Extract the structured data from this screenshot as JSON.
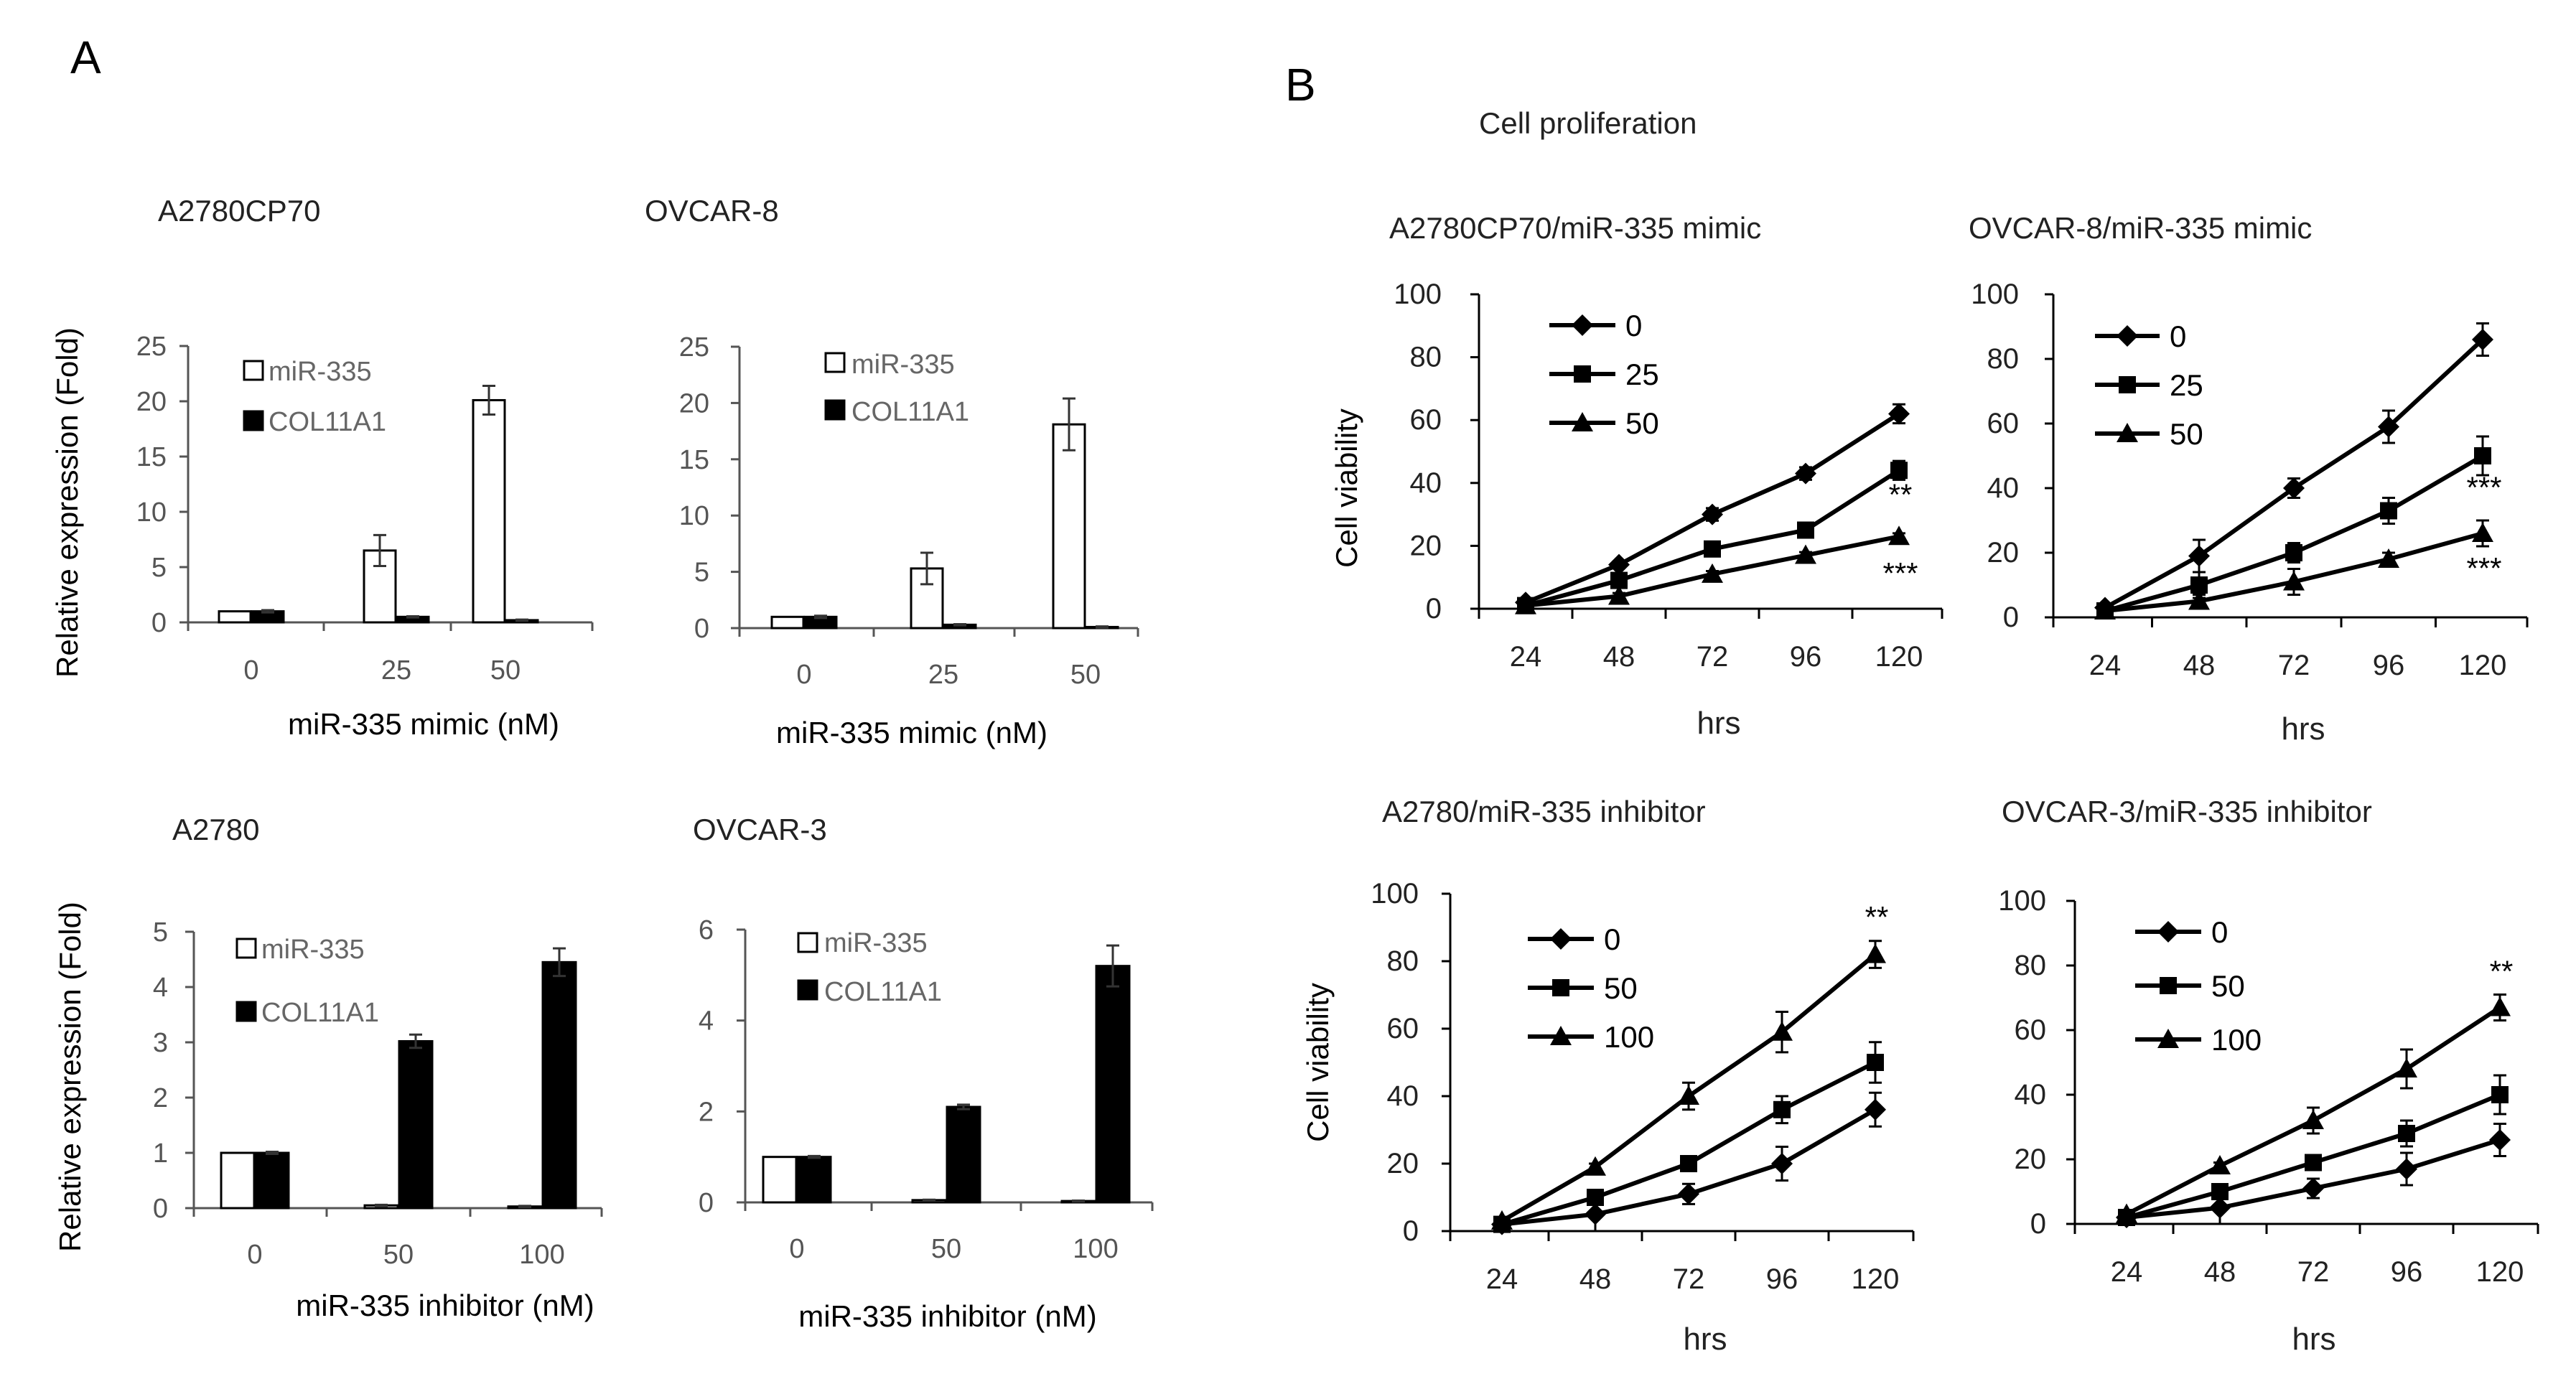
{
  "figure": {
    "panel_a_label": "A",
    "panel_b_label": "B",
    "panel_b_title": "Cell proliferation",
    "bar_ylabel": "Relative expression (Fold)",
    "line_ylabel": "Cell viability",
    "line_xlabel": "hrs"
  },
  "colors": {
    "ink": "#000000",
    "axis": "#555555",
    "text": "#222222",
    "legend_text": "#666666",
    "open_fill": "#ffffff",
    "solid_fill": "#000000"
  },
  "chart_data": [
    {
      "type": "bar",
      "title": "A2780CP70",
      "xlabel": "miR-335 mimic (nM)",
      "categories": [
        "0",
        "25",
        "50"
      ],
      "ylim": [
        0,
        25
      ],
      "yticks": [
        "0",
        "5",
        "10",
        "15",
        "20",
        "25"
      ],
      "series": [
        {
          "name": "miR-335",
          "values": [
            1,
            6.5,
            20.1
          ],
          "errors": [
            0,
            1.4,
            1.3
          ]
        },
        {
          "name": "COL11A1",
          "values": [
            1,
            0.5,
            0.2
          ],
          "errors": [
            0.1,
            0.05,
            0.05
          ]
        }
      ]
    },
    {
      "type": "bar",
      "title": "OVCAR-8",
      "xlabel": "miR-335 mimic (nM)",
      "categories": [
        "0",
        "25",
        "50"
      ],
      "ylim": [
        0,
        25
      ],
      "yticks": [
        "0",
        "5",
        "10",
        "15",
        "20",
        "25"
      ],
      "series": [
        {
          "name": "miR-335",
          "values": [
            1,
            5.3,
            18.1
          ],
          "errors": [
            0,
            1.4,
            2.3
          ]
        },
        {
          "name": "COL11A1",
          "values": [
            1,
            0.3,
            0.1
          ],
          "errors": [
            0.1,
            0.05,
            0.05
          ]
        }
      ]
    },
    {
      "type": "bar",
      "title": "A2780",
      "xlabel": "miR-335 inhibitor (nM)",
      "categories": [
        "0",
        "50",
        "100"
      ],
      "ylim": [
        0,
        5
      ],
      "yticks": [
        "0",
        "1",
        "2",
        "3",
        "4",
        "5"
      ],
      "series": [
        {
          "name": "miR-335",
          "values": [
            1,
            0.05,
            0.03
          ],
          "errors": [
            0,
            0.01,
            0.01
          ]
        },
        {
          "name": "COL11A1",
          "values": [
            1,
            3.02,
            4.45
          ],
          "errors": [
            0.02,
            0.12,
            0.25
          ]
        }
      ]
    },
    {
      "type": "bar",
      "title": "OVCAR-3",
      "xlabel": "miR-335 inhibitor (nM)",
      "categories": [
        "0",
        "50",
        "100"
      ],
      "ylim": [
        0,
        6
      ],
      "yticks": [
        "0",
        "2",
        "4",
        "6"
      ],
      "series": [
        {
          "name": "miR-335",
          "values": [
            1,
            0.05,
            0.03
          ],
          "errors": [
            0,
            0.01,
            0.01
          ]
        },
        {
          "name": "COL11A1",
          "values": [
            1,
            2.1,
            5.2
          ],
          "errors": [
            0.02,
            0.05,
            0.45
          ]
        }
      ]
    },
    {
      "type": "line",
      "title": "A2780CP70/miR-335 mimic",
      "xlabel": "hrs",
      "ylabel": "Cell viability",
      "x": [
        "24",
        "48",
        "72",
        "96",
        "120"
      ],
      "ylim": [
        0,
        100
      ],
      "yticks": [
        "0",
        "20",
        "40",
        "60",
        "80",
        "100"
      ],
      "series": [
        {
          "name": "0",
          "marker": "diamond",
          "values": [
            2,
            14,
            30,
            43,
            62
          ],
          "errors": [
            1,
            1,
            2,
            2,
            3
          ]
        },
        {
          "name": "25",
          "marker": "square",
          "values": [
            1,
            9,
            19,
            25,
            44
          ],
          "errors": [
            1,
            1,
            1,
            1,
            3
          ]
        },
        {
          "name": "50",
          "marker": "triangle",
          "values": [
            1,
            4,
            11,
            17,
            23
          ],
          "errors": [
            1,
            1,
            1,
            1,
            1
          ]
        }
      ],
      "annotations": [
        {
          "text": "**",
          "x": "120",
          "y": 33
        },
        {
          "text": "***",
          "x": "120",
          "y": 8
        }
      ]
    },
    {
      "type": "line",
      "title": "OVCAR-8/miR-335 mimic",
      "xlabel": "hrs",
      "ylabel": "",
      "x": [
        "24",
        "48",
        "72",
        "96",
        "120"
      ],
      "ylim": [
        0,
        100
      ],
      "yticks": [
        "0",
        "20",
        "40",
        "60",
        "80",
        "100"
      ],
      "series": [
        {
          "name": "0",
          "marker": "diamond",
          "values": [
            3,
            19,
            40,
            59,
            86
          ],
          "errors": [
            1,
            5,
            3,
            5,
            5
          ]
        },
        {
          "name": "25",
          "marker": "square",
          "values": [
            2,
            10,
            20,
            33,
            50
          ],
          "errors": [
            1,
            4,
            3,
            4,
            6
          ]
        },
        {
          "name": "50",
          "marker": "triangle",
          "values": [
            2,
            5,
            11,
            18,
            26
          ],
          "errors": [
            1,
            2,
            4,
            2,
            4
          ]
        }
      ],
      "annotations": [
        {
          "text": "***",
          "x": "120",
          "y": 37
        },
        {
          "text": "***",
          "x": "120",
          "y": 12
        }
      ]
    },
    {
      "type": "line",
      "title": "A2780/miR-335 inhibitor",
      "xlabel": "hrs",
      "ylabel": "Cell viability",
      "x": [
        "24",
        "48",
        "72",
        "96",
        "120"
      ],
      "ylim": [
        0,
        100
      ],
      "yticks": [
        "0",
        "20",
        "40",
        "60",
        "80",
        "100"
      ],
      "series": [
        {
          "name": "0",
          "marker": "diamond",
          "values": [
            2,
            5,
            11,
            20,
            36
          ],
          "errors": [
            1,
            5,
            3,
            5,
            5
          ]
        },
        {
          "name": "50",
          "marker": "square",
          "values": [
            2,
            10,
            20,
            36,
            50
          ],
          "errors": [
            1,
            2,
            2,
            4,
            6
          ]
        },
        {
          "name": "100",
          "marker": "triangle",
          "values": [
            3,
            19,
            40,
            59,
            82
          ],
          "errors": [
            1,
            1,
            4,
            6,
            4
          ]
        }
      ],
      "annotations": [
        {
          "text": "**",
          "x": "120",
          "y": 90
        }
      ]
    },
    {
      "type": "line",
      "title": "OVCAR-3/miR-335 inhibitor",
      "xlabel": "hrs",
      "ylabel": "",
      "x": [
        "24",
        "48",
        "72",
        "96",
        "120"
      ],
      "ylim": [
        0,
        100
      ],
      "yticks": [
        "0",
        "20",
        "40",
        "60",
        "80",
        "100"
      ],
      "series": [
        {
          "name": "0",
          "marker": "diamond",
          "values": [
            2,
            5,
            11,
            17,
            26
          ],
          "errors": [
            1,
            5,
            3,
            5,
            5
          ]
        },
        {
          "name": "50",
          "marker": "square",
          "values": [
            2,
            10,
            19,
            28,
            40
          ],
          "errors": [
            1,
            2,
            2,
            4,
            6
          ]
        },
        {
          "name": "100",
          "marker": "triangle",
          "values": [
            3,
            18,
            32,
            48,
            67
          ],
          "errors": [
            1,
            1,
            4,
            6,
            4
          ]
        }
      ],
      "annotations": [
        {
          "text": "**",
          "x": "120",
          "y": 75
        }
      ]
    }
  ]
}
